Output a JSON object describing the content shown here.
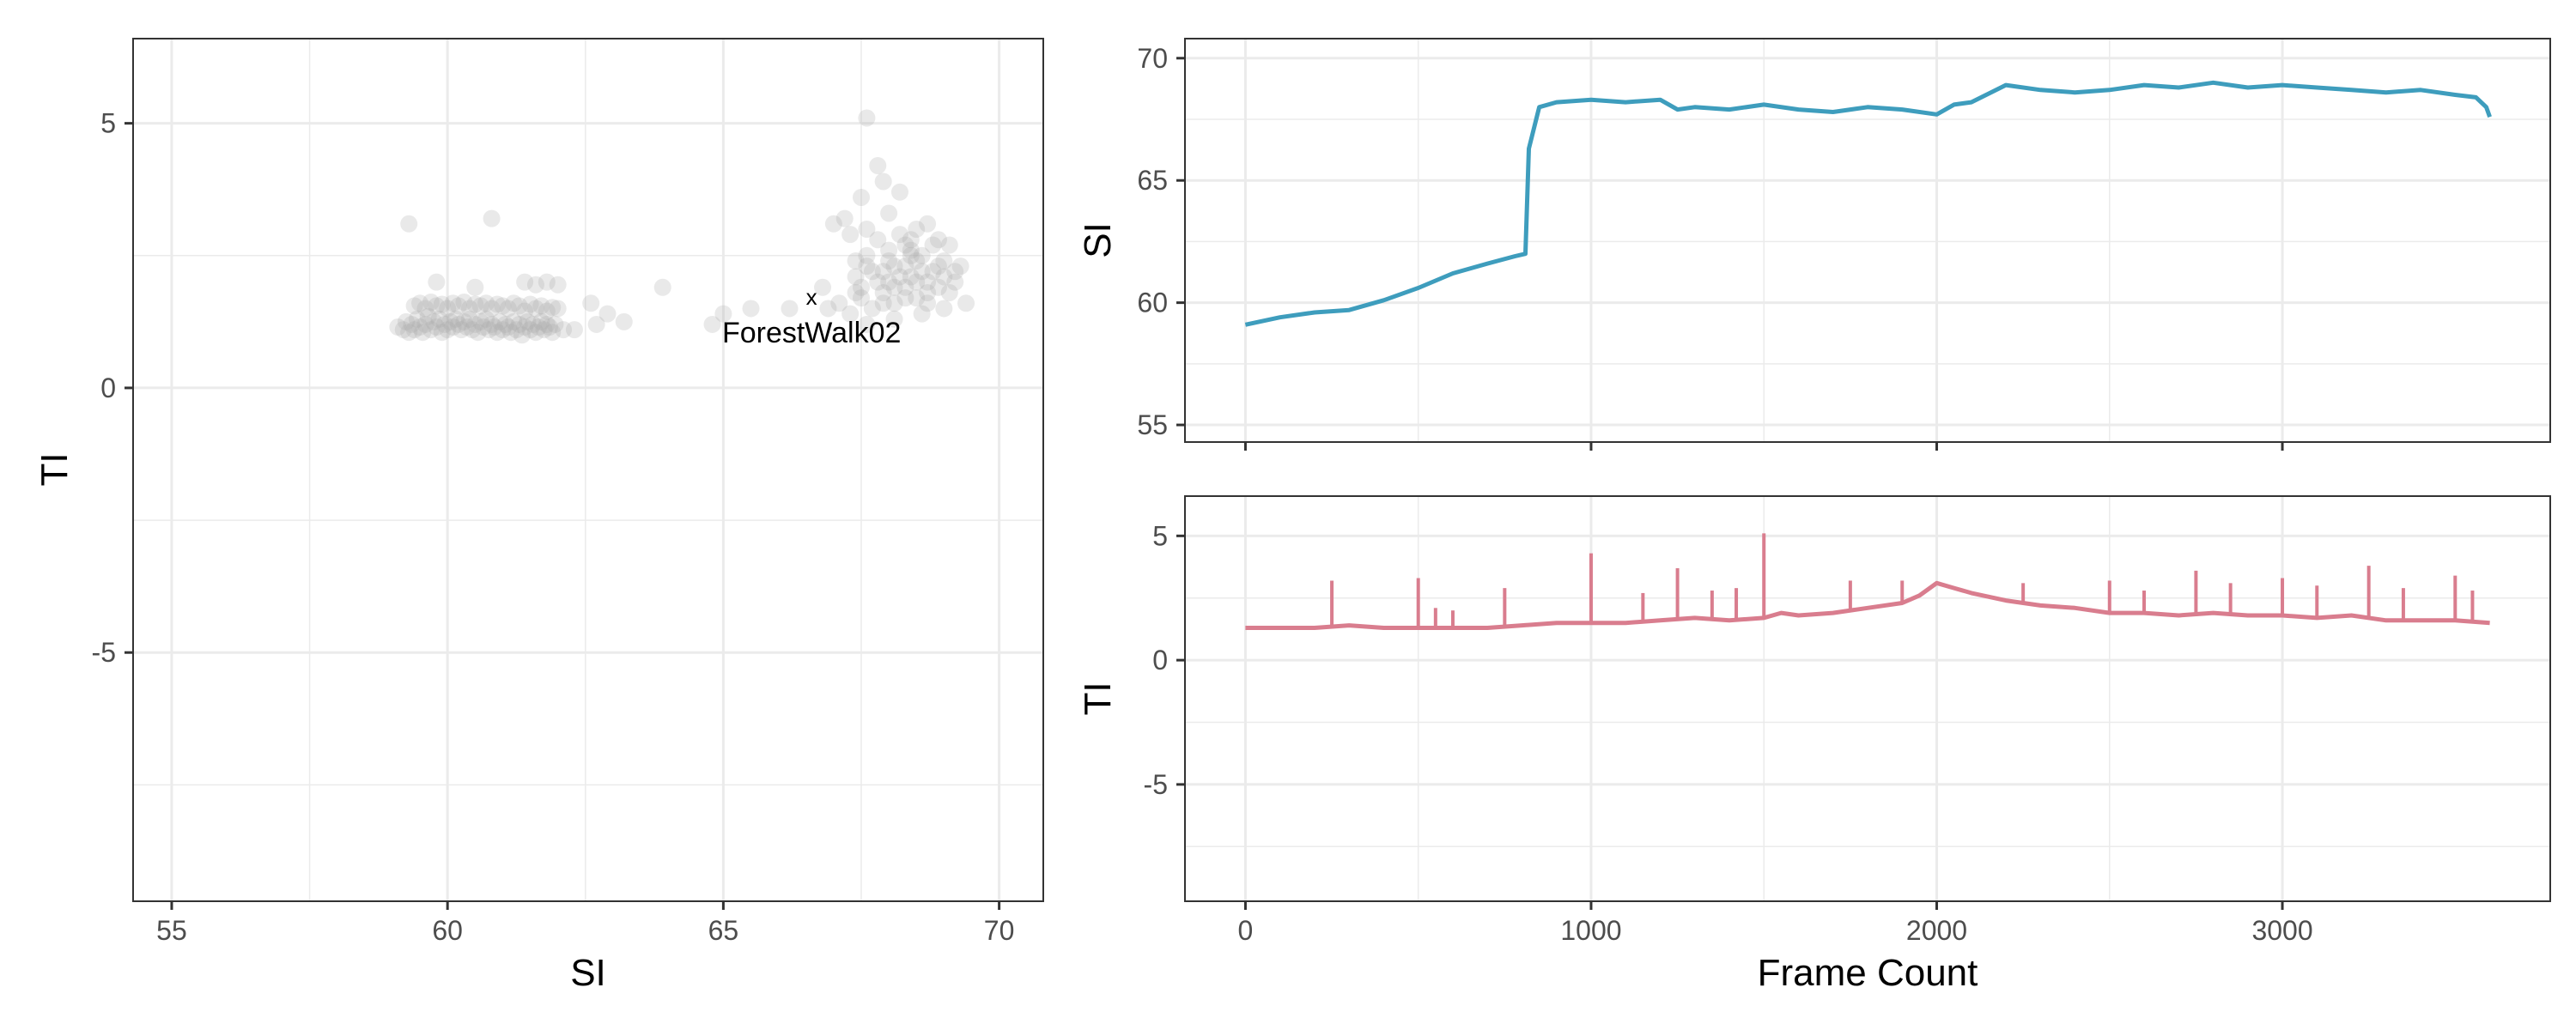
{
  "chart_data": [
    {
      "type": "scatter",
      "xlabel": "SI",
      "ylabel": "TI",
      "xlim": [
        54.3,
        70.8
      ],
      "ylim": [
        -9.7,
        6.6
      ],
      "xticks": [
        55,
        60,
        65,
        70
      ],
      "xtick_labels": [
        "55",
        "60",
        "65",
        "70"
      ],
      "yticks": [
        -5,
        0,
        5
      ],
      "ytick_labels": [
        "-5",
        "0",
        "5"
      ],
      "grid": true,
      "point_color": "#a8a8a8",
      "point_alpha": 0.25,
      "marker": {
        "x": 66.6,
        "y": 1.7,
        "symbol": "x"
      },
      "annotation": {
        "text": "ForestWalk02",
        "x": 66.6,
        "y": 1.05
      },
      "points": [
        [
          59.1,
          1.15
        ],
        [
          59.2,
          1.1
        ],
        [
          59.25,
          1.25
        ],
        [
          59.3,
          1.05
        ],
        [
          59.35,
          1.2
        ],
        [
          59.4,
          1.1
        ],
        [
          59.45,
          1.3
        ],
        [
          59.5,
          1.15
        ],
        [
          59.55,
          1.05
        ],
        [
          59.6,
          1.2
        ],
        [
          59.65,
          1.35
        ],
        [
          59.7,
          1.1
        ],
        [
          59.75,
          1.25
        ],
        [
          59.8,
          1.15
        ],
        [
          59.85,
          1.3
        ],
        [
          59.9,
          1.05
        ],
        [
          59.95,
          1.2
        ],
        [
          60.0,
          1.1
        ],
        [
          60.05,
          1.25
        ],
        [
          60.1,
          1.15
        ],
        [
          60.15,
          1.3
        ],
        [
          60.2,
          1.2
        ],
        [
          60.25,
          1.1
        ],
        [
          60.3,
          1.25
        ],
        [
          60.35,
          1.15
        ],
        [
          60.4,
          1.3
        ],
        [
          60.45,
          1.1
        ],
        [
          60.5,
          1.2
        ],
        [
          60.55,
          1.05
        ],
        [
          60.6,
          1.25
        ],
        [
          60.65,
          1.15
        ],
        [
          60.7,
          1.3
        ],
        [
          60.75,
          1.1
        ],
        [
          60.8,
          1.2
        ],
        [
          60.85,
          1.15
        ],
        [
          60.9,
          1.05
        ],
        [
          60.95,
          1.25
        ],
        [
          61.0,
          1.1
        ],
        [
          61.05,
          1.2
        ],
        [
          61.1,
          1.15
        ],
        [
          61.15,
          1.05
        ],
        [
          61.2,
          1.25
        ],
        [
          61.25,
          1.1
        ],
        [
          61.3,
          1.2
        ],
        [
          61.35,
          1.0
        ],
        [
          61.4,
          1.15
        ],
        [
          61.45,
          1.25
        ],
        [
          61.5,
          1.1
        ],
        [
          61.55,
          1.2
        ],
        [
          61.6,
          1.05
        ],
        [
          61.65,
          1.15
        ],
        [
          61.7,
          1.25
        ],
        [
          61.75,
          1.1
        ],
        [
          61.8,
          1.2
        ],
        [
          61.85,
          1.15
        ],
        [
          61.9,
          1.05
        ],
        [
          61.95,
          1.2
        ],
        [
          59.4,
          1.55
        ],
        [
          59.5,
          1.6
        ],
        [
          59.6,
          1.5
        ],
        [
          59.7,
          1.62
        ],
        [
          59.8,
          1.55
        ],
        [
          59.9,
          1.58
        ],
        [
          60.0,
          1.5
        ],
        [
          60.1,
          1.6
        ],
        [
          60.2,
          1.55
        ],
        [
          60.3,
          1.62
        ],
        [
          60.4,
          1.5
        ],
        [
          60.5,
          1.58
        ],
        [
          60.6,
          1.55
        ],
        [
          60.7,
          1.6
        ],
        [
          60.8,
          1.5
        ],
        [
          60.9,
          1.58
        ],
        [
          61.0,
          1.55
        ],
        [
          61.1,
          1.5
        ],
        [
          61.2,
          1.6
        ],
        [
          61.3,
          1.55
        ],
        [
          61.4,
          1.45
        ],
        [
          61.5,
          1.58
        ],
        [
          61.6,
          1.5
        ],
        [
          61.7,
          1.55
        ],
        [
          61.8,
          1.45
        ],
        [
          61.9,
          1.52
        ],
        [
          62.0,
          1.5
        ],
        [
          59.3,
          3.1
        ],
        [
          60.8,
          3.2
        ],
        [
          61.4,
          2.0
        ],
        [
          61.6,
          1.95
        ],
        [
          61.8,
          2.0
        ],
        [
          62.0,
          1.95
        ],
        [
          59.8,
          2.0
        ],
        [
          60.5,
          1.9
        ],
        [
          62.1,
          1.1
        ],
        [
          62.3,
          1.1
        ],
        [
          62.6,
          1.6
        ],
        [
          62.9,
          1.4
        ],
        [
          62.7,
          1.2
        ],
        [
          63.2,
          1.25
        ],
        [
          63.9,
          1.9
        ],
        [
          64.8,
          1.2
        ],
        [
          65.0,
          1.4
        ],
        [
          65.5,
          1.5
        ],
        [
          66.2,
          1.5
        ],
        [
          66.9,
          1.5
        ],
        [
          67.0,
          3.1
        ],
        [
          67.2,
          3.2
        ],
        [
          67.3,
          2.9
        ],
        [
          67.5,
          3.6
        ],
        [
          67.6,
          3.0
        ],
        [
          67.8,
          4.2
        ],
        [
          67.9,
          3.9
        ],
        [
          68.0,
          3.3
        ],
        [
          68.2,
          3.7
        ],
        [
          68.5,
          3.0
        ],
        [
          68.7,
          3.1
        ],
        [
          68.9,
          2.8
        ],
        [
          67.6,
          5.1
        ],
        [
          67.4,
          2.4
        ],
        [
          68.4,
          2.5
        ],
        [
          69.1,
          2.7
        ],
        [
          69.3,
          2.3
        ],
        [
          66.8,
          1.9
        ],
        [
          67.1,
          1.6
        ],
        [
          69.4,
          1.6
        ],
        [
          67.3,
          1.4
        ],
        [
          67.6,
          1.2
        ],
        [
          68.1,
          1.3
        ],
        [
          68.6,
          1.4
        ],
        [
          69.0,
          1.5
        ],
        [
          67.9,
          1.6
        ],
        [
          68.3,
          1.7
        ],
        [
          68.7,
          1.8
        ],
        [
          67.5,
          1.9
        ],
        [
          68.0,
          2.0
        ],
        [
          68.4,
          2.1
        ],
        [
          68.8,
          2.2
        ],
        [
          69.2,
          2.0
        ],
        [
          67.4,
          2.1
        ],
        [
          67.7,
          2.2
        ],
        [
          68.1,
          2.3
        ],
        [
          68.5,
          2.4
        ],
        [
          68.9,
          2.3
        ],
        [
          67.6,
          2.5
        ],
        [
          68.0,
          2.6
        ],
        [
          68.3,
          2.7
        ],
        [
          68.6,
          2.5
        ],
        [
          69.0,
          2.4
        ],
        [
          67.8,
          2.8
        ],
        [
          68.2,
          2.9
        ],
        [
          68.4,
          2.8
        ],
        [
          67.5,
          1.7
        ],
        [
          67.9,
          1.8
        ],
        [
          68.3,
          1.9
        ],
        [
          68.7,
          1.6
        ],
        [
          69.1,
          1.8
        ],
        [
          67.7,
          1.5
        ],
        [
          68.1,
          1.6
        ],
        [
          68.5,
          1.7
        ],
        [
          68.9,
          1.9
        ],
        [
          67.4,
          1.8
        ],
        [
          67.8,
          2.0
        ],
        [
          68.2,
          2.1
        ],
        [
          68.6,
          2.2
        ],
        [
          69.0,
          2.1
        ],
        [
          67.6,
          2.3
        ],
        [
          68.0,
          2.4
        ],
        [
          68.4,
          2.6
        ],
        [
          68.8,
          2.7
        ],
        [
          67.9,
          2.2
        ],
        [
          68.3,
          2.3
        ],
        [
          68.7,
          2.0
        ],
        [
          69.2,
          2.2
        ],
        [
          68.1,
          1.9
        ],
        [
          68.5,
          2.0
        ]
      ]
    },
    {
      "type": "line",
      "ylabel": "SI",
      "xlim": [
        -175,
        3775
      ],
      "ylim": [
        54.3,
        70.8
      ],
      "yticks": [
        55,
        60,
        65,
        70
      ],
      "ytick_labels": [
        "55",
        "60",
        "65",
        "70"
      ],
      "grid": true,
      "series": [
        {
          "color": "#3e9dbd",
          "x": [
            0,
            100,
            200,
            300,
            400,
            500,
            600,
            700,
            780,
            810,
            820,
            850,
            900,
            1000,
            1100,
            1200,
            1250,
            1300,
            1400,
            1500,
            1600,
            1700,
            1800,
            1900,
            2000,
            2050,
            2100,
            2200,
            2300,
            2400,
            2500,
            2600,
            2700,
            2800,
            2900,
            3000,
            3100,
            3200,
            3300,
            3400,
            3500,
            3560,
            3590,
            3600
          ],
          "y": [
            59.1,
            59.4,
            59.6,
            59.7,
            60.1,
            60.6,
            61.2,
            61.6,
            61.9,
            62.0,
            66.3,
            68.0,
            68.2,
            68.3,
            68.2,
            68.3,
            67.9,
            68.0,
            67.9,
            68.1,
            67.9,
            67.8,
            68.0,
            67.9,
            67.7,
            68.1,
            68.2,
            68.9,
            68.7,
            68.6,
            68.7,
            68.9,
            68.8,
            69.0,
            68.8,
            68.9,
            68.8,
            68.7,
            68.6,
            68.7,
            68.5,
            68.4,
            68.0,
            67.6
          ]
        }
      ]
    },
    {
      "type": "line",
      "xlabel": "Frame Count",
      "ylabel": "TI",
      "xlim": [
        -175,
        3775
      ],
      "ylim": [
        -9.7,
        6.6
      ],
      "xticks": [
        0,
        1000,
        2000,
        3000
      ],
      "xtick_labels": [
        "0",
        "1000",
        "2000",
        "3000"
      ],
      "yticks": [
        -5,
        0,
        5
      ],
      "ytick_labels": [
        "-5",
        "0",
        "5"
      ],
      "grid": true,
      "series": [
        {
          "color": "#d97d8e",
          "x": [
            0,
            100,
            200,
            300,
            400,
            500,
            600,
            700,
            800,
            900,
            1000,
            1100,
            1200,
            1300,
            1400,
            1500,
            1550,
            1600,
            1700,
            1800,
            1900,
            1950,
            2000,
            2050,
            2100,
            2200,
            2300,
            2400,
            2500,
            2600,
            2700,
            2800,
            2900,
            3000,
            3100,
            3200,
            3300,
            3400,
            3500,
            3600
          ],
          "y": [
            1.3,
            1.3,
            1.3,
            1.4,
            1.3,
            1.3,
            1.3,
            1.3,
            1.4,
            1.5,
            1.5,
            1.5,
            1.6,
            1.7,
            1.6,
            1.7,
            1.9,
            1.8,
            1.9,
            2.1,
            2.3,
            2.6,
            3.1,
            2.9,
            2.7,
            2.4,
            2.2,
            2.1,
            1.9,
            1.9,
            1.8,
            1.9,
            1.8,
            1.8,
            1.7,
            1.8,
            1.6,
            1.6,
            1.6,
            1.5
          ]
        }
      ],
      "spikes": [
        {
          "x": 250,
          "y": 3.2
        },
        {
          "x": 500,
          "y": 3.3
        },
        {
          "x": 550,
          "y": 2.1
        },
        {
          "x": 600,
          "y": 2.0
        },
        {
          "x": 750,
          "y": 2.9
        },
        {
          "x": 1000,
          "y": 4.3
        },
        {
          "x": 1150,
          "y": 2.7
        },
        {
          "x": 1250,
          "y": 3.7
        },
        {
          "x": 1350,
          "y": 2.8
        },
        {
          "x": 1420,
          "y": 2.9
        },
        {
          "x": 1500,
          "y": 5.1
        },
        {
          "x": 1750,
          "y": 3.2
        },
        {
          "x": 1900,
          "y": 3.2
        },
        {
          "x": 2250,
          "y": 3.1
        },
        {
          "x": 2500,
          "y": 3.2
        },
        {
          "x": 2600,
          "y": 2.8
        },
        {
          "x": 2750,
          "y": 3.6
        },
        {
          "x": 2850,
          "y": 3.1
        },
        {
          "x": 3000,
          "y": 3.3
        },
        {
          "x": 3100,
          "y": 3.0
        },
        {
          "x": 3250,
          "y": 3.8
        },
        {
          "x": 3350,
          "y": 2.9
        },
        {
          "x": 3500,
          "y": 3.4
        },
        {
          "x": 3550,
          "y": 2.8
        }
      ]
    }
  ]
}
